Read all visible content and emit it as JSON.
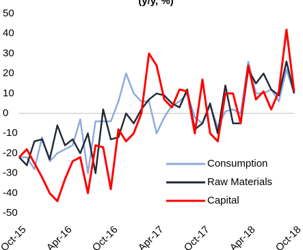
{
  "chart_data": {
    "type": "line",
    "title": "(y/y, %)",
    "categories": [
      "Oct-15",
      null,
      null,
      null,
      null,
      null,
      "Apr-16",
      null,
      null,
      null,
      null,
      null,
      "Oct-16",
      null,
      null,
      null,
      null,
      null,
      "Apr-17",
      null,
      null,
      null,
      null,
      null,
      "Oct-17",
      null,
      null,
      null,
      null,
      null,
      "Apr-18",
      null,
      null,
      null,
      null,
      null,
      "Oct-18"
    ],
    "series": [
      {
        "name": "Consumption",
        "color": "#8faadc",
        "values": [
          -22,
          -22,
          -28,
          -12,
          -24,
          -20,
          -18,
          -16,
          -3,
          -30,
          -4,
          -4,
          -4,
          6,
          20,
          10,
          6,
          6,
          -10,
          -2,
          4,
          6,
          10,
          -2,
          -5,
          4,
          -7,
          1,
          2,
          0,
          26,
          10,
          10,
          12,
          6,
          22,
          10
        ]
      },
      {
        "name": "Raw Materials",
        "color": "#222a35",
        "values": [
          -22,
          -26,
          -14,
          -13,
          -23,
          -6,
          -16,
          -13,
          -20,
          -10,
          -30,
          2,
          -13,
          -12,
          0,
          -5,
          2,
          7,
          10,
          9,
          5,
          3,
          12,
          -8,
          -5,
          5,
          -10,
          14,
          -5,
          -5,
          22,
          15,
          20,
          12,
          9,
          26,
          10
        ]
      },
      {
        "name": "Capital",
        "color": "#ff0000",
        "values": [
          -22,
          -18,
          -25,
          -32,
          -40,
          -44,
          -33,
          -24,
          -22,
          -40,
          -16,
          -17,
          -38,
          -8,
          -14,
          -10,
          0,
          30,
          24,
          7,
          3,
          12,
          11,
          -10,
          17,
          -10,
          -14,
          10,
          10,
          -5,
          24,
          7,
          11,
          2,
          11,
          42,
          11
        ]
      }
    ],
    "ylim": [
      -50,
      50
    ],
    "yticks": [
      -50,
      -40,
      -30,
      -20,
      -10,
      0,
      10,
      20,
      30,
      40,
      50
    ],
    "legend": "lower right"
  }
}
